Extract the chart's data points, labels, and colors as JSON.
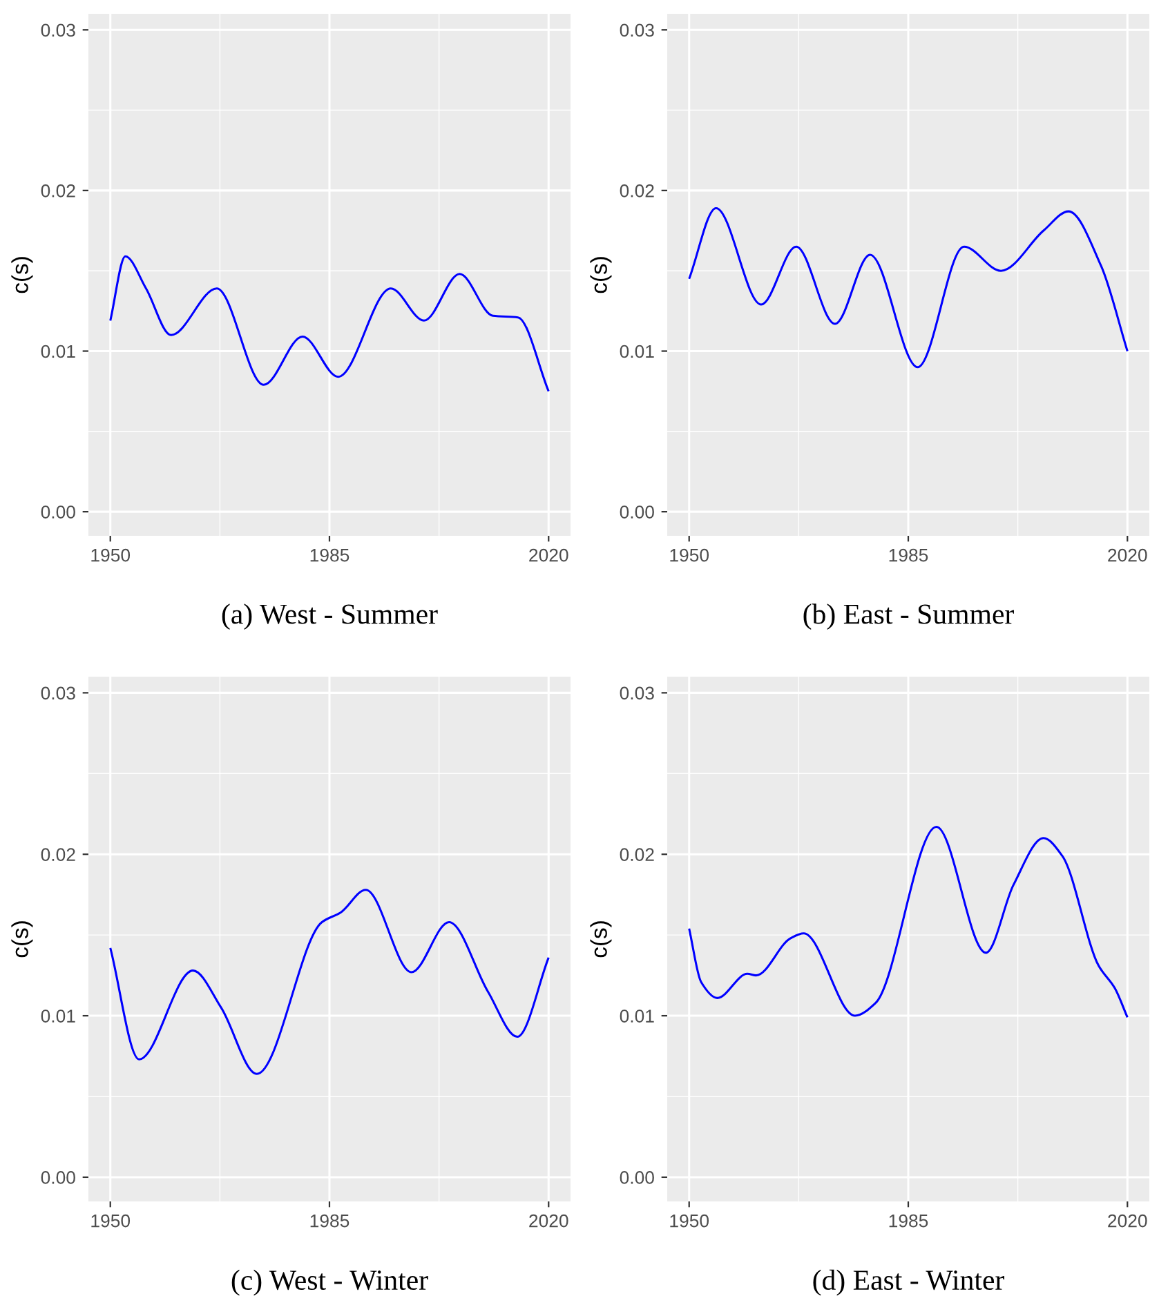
{
  "chart_data": [
    {
      "type": "line",
      "title": "(a) West - Summer",
      "ylabel": "c(s)",
      "xlim": [
        1946.5,
        2023.5
      ],
      "xticks": [
        1950,
        1985,
        2020
      ],
      "ylim": [
        -0.0015,
        0.031
      ],
      "yticks": [
        {
          "value": 0,
          "label": "0.00"
        },
        {
          "value": 0.01,
          "label": "0.01"
        },
        {
          "value": 0.02,
          "label": "0.02"
        },
        {
          "value": 0.03,
          "label": "0.03"
        }
      ],
      "grid": true,
      "line_style": "solid",
      "marker": "none",
      "series": [
        {
          "color": "#0000ff",
          "x": [
            1950,
            1952.4,
            1955.7,
            1959.7,
            1967,
            1974.5,
            1980.7,
            1986.4,
            1994.8,
            2000.1,
            2005.8,
            2011.1,
            2015.1,
            2020
          ],
          "values": [
            0.0119,
            0.0159,
            0.0139,
            0.011,
            0.0139,
            0.0079,
            0.0109,
            0.0084,
            0.0139,
            0.0119,
            0.0148,
            0.0122,
            0.0121,
            0.0075
          ]
        }
      ]
    },
    {
      "type": "line",
      "title": "(b) East - Summer",
      "ylabel": "c(s)",
      "xlim": [
        1946.5,
        2023.5
      ],
      "xticks": [
        1950,
        1985,
        2020
      ],
      "ylim": [
        -0.0015,
        0.031
      ],
      "yticks": [
        {
          "value": 0,
          "label": "0.00"
        },
        {
          "value": 0.01,
          "label": "0.01"
        },
        {
          "value": 0.02,
          "label": "0.02"
        },
        {
          "value": 0.03,
          "label": "0.03"
        }
      ],
      "grid": true,
      "line_style": "solid",
      "marker": "none",
      "series": [
        {
          "color": "#0000ff",
          "x": [
            1950,
            1954.3,
            1961.5,
            1967.1,
            1973.3,
            1978.9,
            1986.5,
            1993.9,
            1999.8,
            2006.6,
            2010.6,
            2015.8,
            2020
          ],
          "values": [
            0.0145,
            0.0189,
            0.0129,
            0.0165,
            0.0117,
            0.016,
            0.009,
            0.0165,
            0.015,
            0.0175,
            0.0187,
            0.0153,
            0.01
          ]
        }
      ]
    },
    {
      "type": "line",
      "title": "(c) West - Winter",
      "ylabel": "c(s)",
      "xlim": [
        1946.5,
        2023.5
      ],
      "xticks": [
        1950,
        1985,
        2020
      ],
      "ylim": [
        -0.0015,
        0.031
      ],
      "yticks": [
        {
          "value": 0,
          "label": "0.00"
        },
        {
          "value": 0.01,
          "label": "0.01"
        },
        {
          "value": 0.02,
          "label": "0.02"
        },
        {
          "value": 0.03,
          "label": "0.03"
        }
      ],
      "grid": true,
      "line_style": "solid",
      "marker": "none",
      "series": [
        {
          "color": "#0000ff",
          "x": [
            1950,
            1954.6,
            1963.2,
            1967.7,
            1973.4,
            1983.8,
            1986.8,
            1990.8,
            1998.1,
            2004.1,
            2010.3,
            2015,
            2020
          ],
          "values": [
            0.0142,
            0.0073,
            0.0128,
            0.0105,
            0.0064,
            0.0158,
            0.0164,
            0.0178,
            0.0127,
            0.0158,
            0.0115,
            0.0087,
            0.0136
          ]
        }
      ]
    },
    {
      "type": "line",
      "title": "(d) East - Winter",
      "ylabel": "c(s)",
      "xlim": [
        1946.5,
        2023.5
      ],
      "xticks": [
        1950,
        1985,
        2020
      ],
      "ylim": [
        -0.0015,
        0.031
      ],
      "yticks": [
        {
          "value": 0,
          "label": "0.00"
        },
        {
          "value": 0.01,
          "label": "0.01"
        },
        {
          "value": 0.02,
          "label": "0.02"
        },
        {
          "value": 0.03,
          "label": "0.03"
        }
      ],
      "grid": true,
      "line_style": "solid",
      "marker": "none",
      "series": [
        {
          "color": "#0000ff",
          "x": [
            1950,
            1951.9,
            1954.5,
            1959.3,
            1960.7,
            1966.2,
            1968.3,
            1976.5,
            1979.8,
            1989.5,
            1997.4,
            2001.8,
            2006.6,
            2009.6,
            2015.4,
            2018,
            2020
          ],
          "values": [
            0.0154,
            0.0121,
            0.0111,
            0.0126,
            0.0125,
            0.0148,
            0.0151,
            0.01,
            0.0108,
            0.0217,
            0.0139,
            0.0181,
            0.021,
            0.0199,
            0.0131,
            0.0117,
            0.0099
          ]
        }
      ]
    }
  ]
}
